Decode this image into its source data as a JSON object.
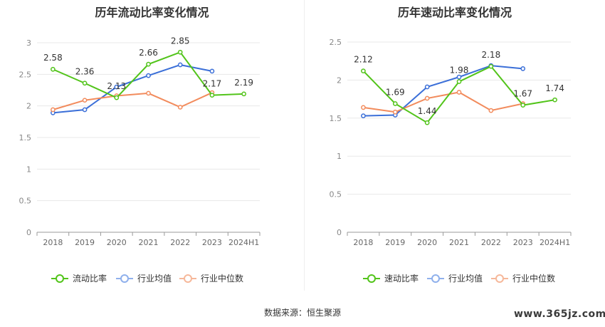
{
  "chart_data": [
    {
      "type": "line",
      "title": "历年流动比率变化情况",
      "categories": [
        "2018",
        "2019",
        "2020",
        "2021",
        "2022",
        "2023",
        "2024H1"
      ],
      "ylim": [
        0,
        3
      ],
      "yticks": [
        "0",
        "0.5",
        "1",
        "1.5",
        "2",
        "2.5",
        "3"
      ],
      "grid": true,
      "legend_position": "bottom",
      "series": [
        {
          "name": "流动比率",
          "color": "#52c41a",
          "values": [
            2.58,
            2.36,
            2.13,
            2.66,
            2.85,
            2.17,
            2.19
          ],
          "labels": [
            "2.58",
            "2.36",
            "2.13",
            "2.66",
            "2.85",
            "2.17",
            "2.19"
          ]
        },
        {
          "name": "行业均值",
          "color": "#3b6fd8",
          "values": [
            1.89,
            1.94,
            2.3,
            2.48,
            2.65,
            2.55,
            null
          ]
        },
        {
          "name": "行业中位数",
          "color": "#f28b5c",
          "values": [
            1.94,
            2.09,
            2.16,
            2.2,
            1.98,
            2.21,
            null
          ]
        }
      ]
    },
    {
      "type": "line",
      "title": "历年速动比率变化情况",
      "categories": [
        "2018",
        "2019",
        "2020",
        "2021",
        "2022",
        "2023",
        "2024H1"
      ],
      "ylim": [
        0,
        2.5
      ],
      "yticks": [
        "0",
        "0.5",
        "1",
        "1.5",
        "2",
        "2.5"
      ],
      "grid": true,
      "legend_position": "bottom",
      "series": [
        {
          "name": "速动比率",
          "color": "#52c41a",
          "values": [
            2.12,
            1.69,
            1.44,
            1.98,
            2.18,
            1.67,
            1.74
          ],
          "labels": [
            "2.12",
            "1.69",
            "1.44",
            "1.98",
            "2.18",
            "1.67",
            "1.74"
          ]
        },
        {
          "name": "行业均值",
          "color": "#3b6fd8",
          "values": [
            1.53,
            1.54,
            1.91,
            2.04,
            2.19,
            2.15,
            null
          ]
        },
        {
          "name": "行业中位数",
          "color": "#f28b5c",
          "values": [
            1.64,
            1.58,
            1.76,
            1.84,
            1.6,
            1.69,
            null
          ]
        }
      ]
    }
  ],
  "footer": {
    "source": "数据来源：恒生聚源",
    "watermark": "www.365jz.com"
  }
}
